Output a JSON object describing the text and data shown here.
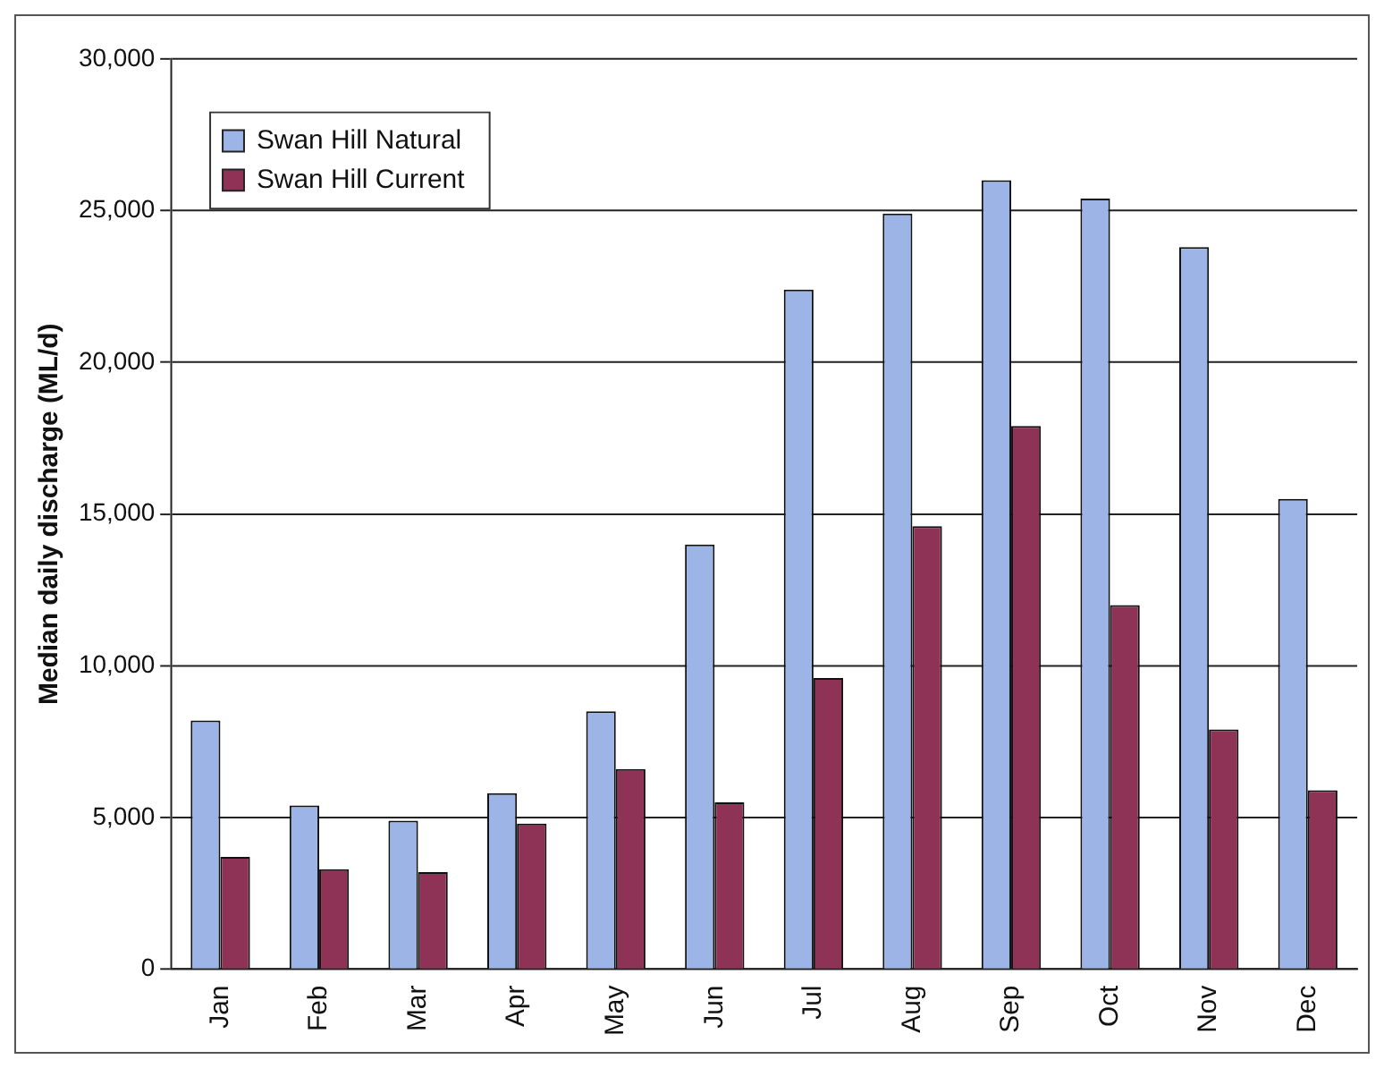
{
  "chart_data": {
    "type": "bar",
    "ylabel": "Median daily discharge (ML/d)",
    "categories": [
      "Jan",
      "Feb",
      "Mar",
      "Apr",
      "May",
      "Jun",
      "Jul",
      "Aug",
      "Sep",
      "Oct",
      "Nov",
      "Dec"
    ],
    "series": [
      {
        "name": "Swan Hill Natural",
        "color": "#9db4e6",
        "values": [
          8200,
          5400,
          4900,
          5800,
          8500,
          14000,
          22400,
          24900,
          26000,
          25400,
          23800,
          15500
        ]
      },
      {
        "name": "Swan Hill Current",
        "color": "#8e3356",
        "values": [
          3700,
          3300,
          3200,
          4800,
          6600,
          5500,
          9600,
          14600,
          17900,
          12000,
          7900,
          5900
        ]
      }
    ],
    "ylim": [
      0,
      30000
    ],
    "yticks": [
      0,
      {
        "value": 5000,
        "label": "5,000"
      },
      {
        "value": 10000,
        "label": "10,000"
      },
      {
        "value": 15000,
        "label": "15,000"
      },
      {
        "value": 20000,
        "label": "20,000"
      },
      {
        "value": 25000,
        "label": "25,000"
      },
      {
        "value": 30000,
        "label": "30,000"
      }
    ],
    "grid": "y",
    "legend": "top left"
  }
}
